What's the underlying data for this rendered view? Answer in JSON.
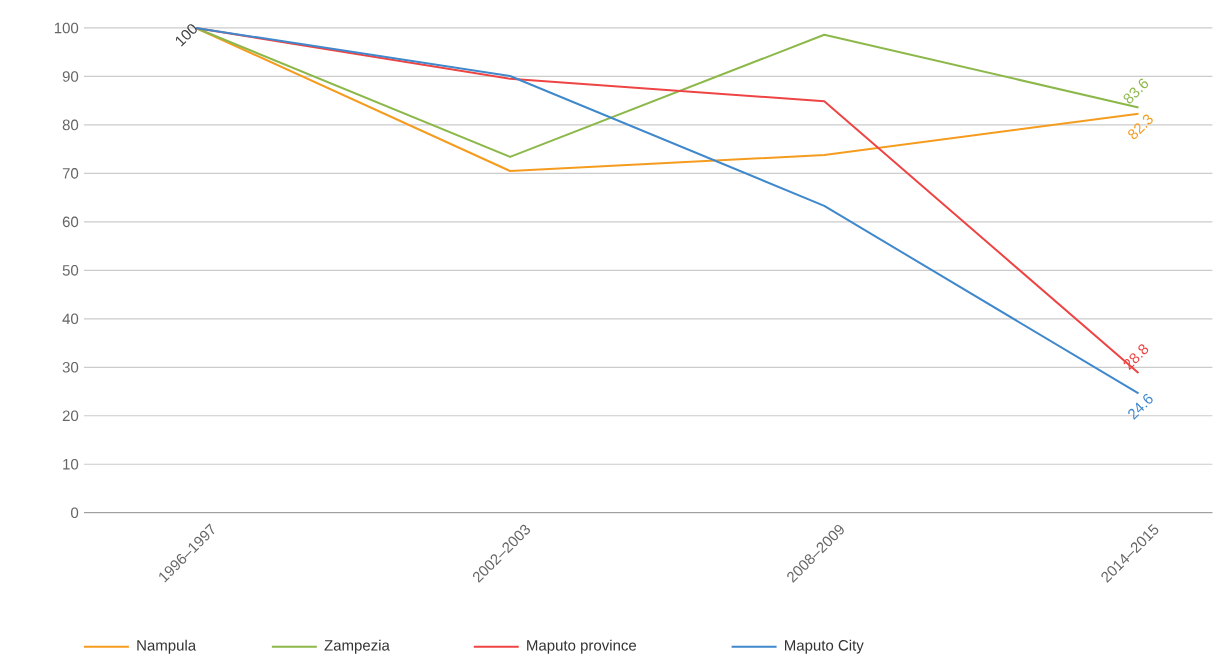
{
  "chart_data": {
    "type": "line",
    "categories": [
      "1996–1997",
      "2002–2003",
      "2008–2009",
      "2014–2015"
    ],
    "series": [
      {
        "name": "Nampula",
        "color": "#f59c1f",
        "values": [
          100,
          70.5,
          73.8,
          82.3
        ],
        "value_labels": [
          null,
          null,
          null,
          "82.3"
        ]
      },
      {
        "name": "Zampezia",
        "color": "#8cb84a",
        "values": [
          100,
          73.4,
          98.6,
          83.6
        ],
        "value_labels": [
          null,
          null,
          null,
          "83.6"
        ]
      },
      {
        "name": "Maputo province",
        "color": "#ee4444",
        "values": [
          100,
          89.5,
          84.9,
          28.8
        ],
        "value_labels": [
          null,
          null,
          null,
          "28.8"
        ]
      },
      {
        "name": "Maputo City",
        "color": "#3f88cc",
        "values": [
          100,
          90.1,
          63.3,
          24.6
        ],
        "value_labels": [
          null,
          null,
          null,
          "24.6"
        ]
      }
    ],
    "annotations": [
      {
        "text": "100",
        "x": "1996–1997",
        "y": 100
      }
    ],
    "ylim": [
      0,
      100
    ],
    "yticks": [
      0,
      10,
      20,
      30,
      40,
      50,
      60,
      70,
      80,
      90,
      100
    ],
    "grid": "y",
    "legend": "bottom",
    "marker": "none",
    "line_style": "solid"
  }
}
